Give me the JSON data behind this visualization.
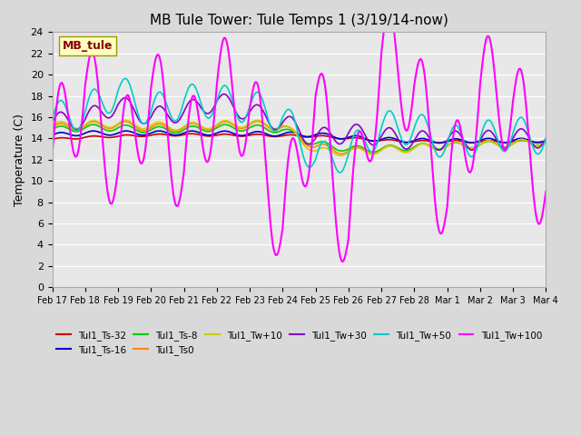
{
  "title": "MB Tule Tower: Tule Temps 1 (3/19/14-now)",
  "ylabel": "Temperature (C)",
  "ylim": [
    0,
    24
  ],
  "yticks": [
    0,
    2,
    4,
    6,
    8,
    10,
    12,
    14,
    16,
    18,
    20,
    22,
    24
  ],
  "plot_bg_color": "#e8e8e8",
  "fig_bg_color": "#d9d9d9",
  "series_order": [
    "Tul1_Ts-32",
    "Tul1_Ts-16",
    "Tul1_Ts-8",
    "Tul1_Ts0",
    "Tul1_Tw+10",
    "Tul1_Tw+30",
    "Tul1_Tw+50",
    "Tul1_Tw+100"
  ],
  "series_colors": {
    "Tul1_Ts-32": "#cc0000",
    "Tul1_Ts-16": "#0000cc",
    "Tul1_Ts-8": "#00cc00",
    "Tul1_Ts0": "#ff8800",
    "Tul1_Tw+10": "#cccc00",
    "Tul1_Tw+30": "#8800cc",
    "Tul1_Tw+50": "#00cccc",
    "Tul1_Tw+100": "#ff00ff"
  },
  "series_lw": {
    "Tul1_Ts-32": 1.2,
    "Tul1_Ts-16": 1.2,
    "Tul1_Ts-8": 1.2,
    "Tul1_Ts0": 1.2,
    "Tul1_Tw+10": 1.2,
    "Tul1_Tw+30": 1.2,
    "Tul1_Tw+50": 1.2,
    "Tul1_Tw+100": 1.5
  },
  "watermark": "MB_tule",
  "watermark_color": "#8B0000",
  "watermark_bg": "#ffffc0",
  "x_labels": [
    "Feb 17",
    "Feb 18",
    "Feb 19",
    "Feb 20",
    "Feb 21",
    "Feb 22",
    "Feb 23",
    "Feb 24",
    "Feb 25",
    "Feb 26",
    "Feb 27",
    "Feb 28",
    "Mar 1",
    "Mar 2",
    "Mar 3",
    "Mar 4"
  ],
  "Tul1_Ts-32": [
    13.9,
    14.1,
    14.2,
    14.3,
    14.35,
    14.3,
    14.3,
    14.25,
    14.2,
    14.0,
    13.8,
    13.7,
    13.7,
    13.7,
    13.7,
    13.75
  ],
  "Tul1_Ts-16": [
    14.3,
    14.5,
    14.5,
    14.5,
    14.5,
    14.5,
    14.45,
    14.4,
    14.35,
    14.1,
    13.9,
    13.8,
    13.75,
    13.8,
    13.8,
    13.8
  ],
  "Tul1_Ts-8": [
    14.8,
    15.0,
    15.0,
    14.8,
    14.8,
    15.0,
    15.0,
    14.8,
    13.5,
    13.0,
    13.0,
    13.2,
    13.3,
    13.4,
    13.5,
    13.7
  ],
  "Tul1_Ts0": [
    15.0,
    15.2,
    15.3,
    15.0,
    15.0,
    15.2,
    15.3,
    15.1,
    13.2,
    12.8,
    12.9,
    13.1,
    13.3,
    13.4,
    13.5,
    13.7
  ],
  "Tul1_Tw+10": [
    15.2,
    15.3,
    15.4,
    15.2,
    15.1,
    15.3,
    15.4,
    15.2,
    12.8,
    12.7,
    12.9,
    13.1,
    13.3,
    13.4,
    13.5,
    13.7
  ],
  "Tul1_Tw+30": [
    15.5,
    15.8,
    17.2,
    16.0,
    16.5,
    17.5,
    16.5,
    15.5,
    14.0,
    14.5,
    14.2,
    13.8,
    13.8,
    13.8,
    14.0,
    14.0
  ],
  "Tul1_Tw+50": [
    15.8,
    16.5,
    18.5,
    16.5,
    17.5,
    17.5,
    17.0,
    16.0,
    12.0,
    12.5,
    15.0,
    15.0,
    13.5,
    14.0,
    14.5,
    14.0
  ],
  "Tul1_Tw+100": [
    12.5,
    19.0,
    11.0,
    18.7,
    10.8,
    19.0,
    16.8,
    5.5,
    18.0,
    4.5,
    22.0,
    19.0,
    7.5,
    19.0,
    17.5,
    9.0
  ]
}
